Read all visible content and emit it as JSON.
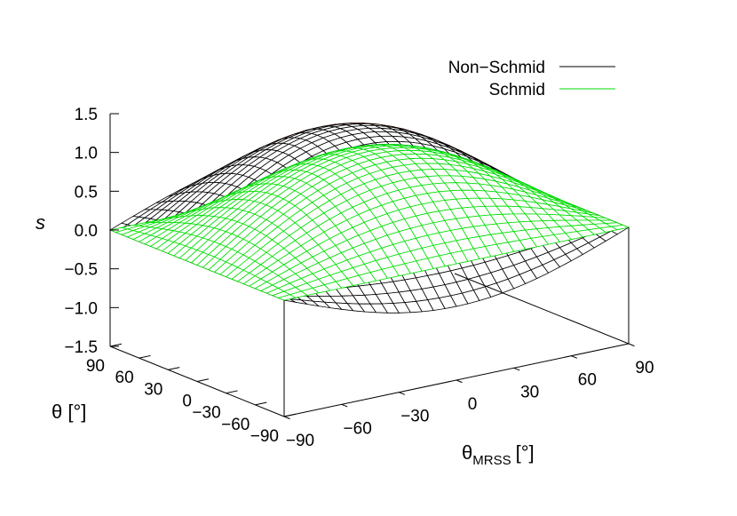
{
  "chart_data": {
    "type": "surface3d",
    "zlabel": "s",
    "xlabel_main": "θ",
    "xlabel_sub": "MRSS",
    "xlabel_unit": "[°]",
    "ylabel": "θ [°]",
    "x_range": [
      -90,
      90
    ],
    "y_range": [
      -90,
      90
    ],
    "z_range": [
      -1.5,
      1.5
    ],
    "x_ticks": [
      -90,
      -60,
      -30,
      0,
      30,
      60,
      90
    ],
    "y_ticks": [
      -90,
      -60,
      -30,
      0,
      30,
      60,
      90
    ],
    "z_ticks": [
      -1.5,
      -1.0,
      -0.5,
      0.0,
      0.5,
      1.0,
      1.5
    ],
    "x_tick_labels": [
      "−90",
      "−60",
      "−30",
      "0",
      "30",
      "60",
      "90"
    ],
    "y_tick_labels": [
      "−90",
      "−60",
      "−30",
      "0",
      "30",
      "60",
      "90"
    ],
    "z_tick_labels": [
      "−1.5",
      "−1.0",
      "−0.5",
      "0.0",
      "0.5",
      "1.0",
      "1.5"
    ],
    "grid": false,
    "legend_position": "top-right",
    "series": [
      {
        "name": "Non−Schmid",
        "color": "#000000",
        "back_color": "#ff4500",
        "model": "s = cos(θMRSS)·cos(θ) + 0.55·cos(θMRSS)·sin(θ)"
      },
      {
        "name": "Schmid",
        "color": "#00dd00",
        "back_color": "#0000ff",
        "model": "s = cos(θMRSS)·cos(θ)"
      }
    ]
  }
}
